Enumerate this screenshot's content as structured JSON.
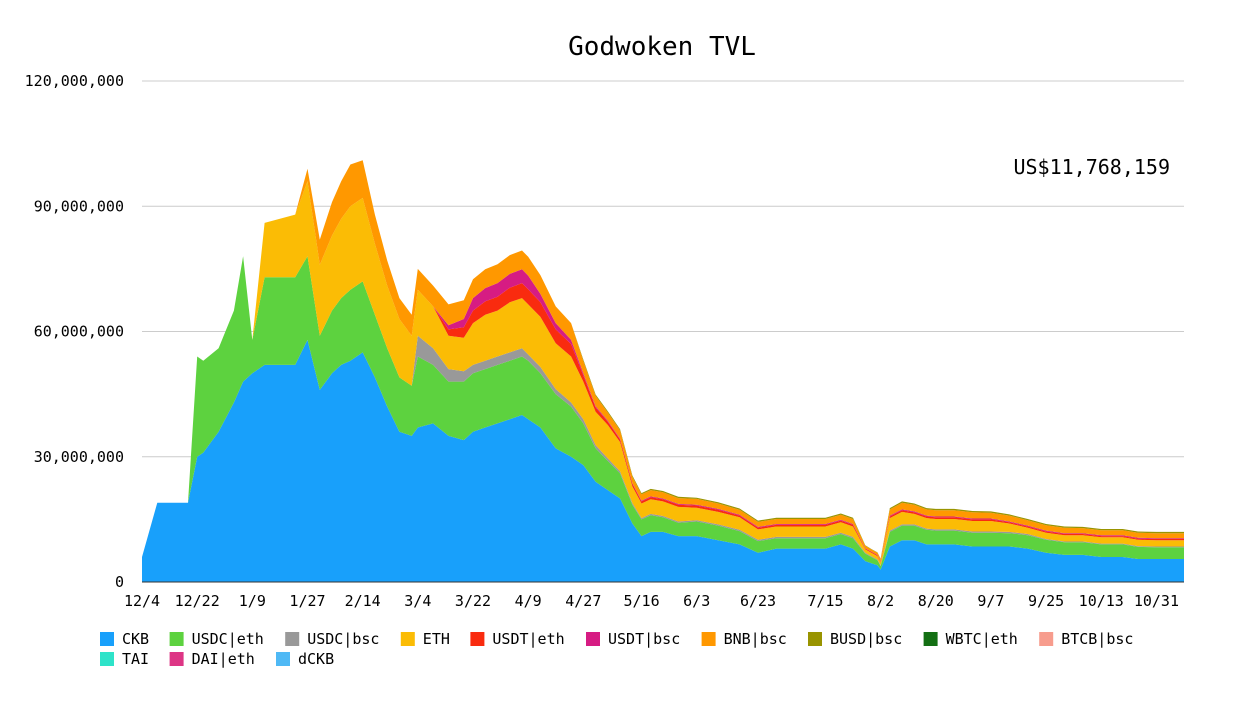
{
  "chart_data": {
    "type": "area",
    "stacked": true,
    "title": "Godwoken TVL",
    "annotation": "US$11,768,159",
    "xlabel": "",
    "ylabel": "",
    "ylim": [
      0,
      120000000
    ],
    "yticks": [
      0,
      30000000,
      60000000,
      90000000,
      120000000
    ],
    "ytick_labels": [
      "0",
      "30,000,000",
      "60,000,000",
      "90,000,000",
      "120,000,000"
    ],
    "x_ticks": [
      "12/4",
      "12/22",
      "1/9",
      "1/27",
      "2/14",
      "3/4",
      "3/22",
      "4/9",
      "4/27",
      "5/16",
      "6/3",
      "6/23",
      "7/15",
      "8/2",
      "8/20",
      "9/7",
      "9/25",
      "10/13",
      "10/31"
    ],
    "x_tick_index": [
      0,
      18,
      36,
      54,
      72,
      90,
      108,
      126,
      144,
      163,
      181,
      201,
      223,
      241,
      259,
      277,
      295,
      313,
      331
    ],
    "x": [
      0,
      5,
      10,
      15,
      18,
      20,
      25,
      30,
      33,
      36,
      40,
      45,
      50,
      54,
      58,
      62,
      65,
      68,
      72,
      76,
      80,
      84,
      88,
      90,
      95,
      100,
      105,
      108,
      112,
      116,
      120,
      124,
      126,
      130,
      135,
      140,
      144,
      148,
      152,
      156,
      160,
      163,
      166,
      170,
      175,
      181,
      188,
      195,
      201,
      207,
      213,
      218,
      223,
      228,
      232,
      236,
      238,
      240,
      241,
      244,
      248,
      252,
      256,
      259,
      265,
      271,
      277,
      283,
      289,
      295,
      301,
      307,
      313,
      320,
      325,
      331,
      337,
      340
    ],
    "grid": true,
    "legend_position": "bottom",
    "legend": [
      "CKB",
      "USDC|eth",
      "USDC|bsc",
      "ETH",
      "USDT|eth",
      "USDT|bsc",
      "BNB|bsc",
      "BUSD|bsc",
      "WBTC|eth",
      "BTCB|bsc",
      "TAI",
      "DAI|eth",
      "dCKB"
    ],
    "series": [
      {
        "name": "CKB",
        "color": "#18a0fb",
        "values": [
          6,
          19,
          19,
          19,
          30,
          31,
          36,
          43,
          48,
          50,
          52,
          52,
          52,
          58,
          46,
          50,
          52,
          53,
          55,
          49,
          42,
          36,
          35,
          37,
          38,
          35,
          34,
          36,
          37,
          38,
          39,
          40,
          39,
          37,
          32,
          30,
          28,
          24,
          22,
          20,
          14,
          11,
          12,
          12,
          11,
          11,
          10,
          9,
          7,
          8,
          8,
          8,
          8,
          9,
          8,
          5,
          4.5,
          4,
          3,
          8.5,
          10,
          10,
          9,
          9,
          9,
          8.5,
          8.5,
          8.5,
          8,
          7,
          6.5,
          6.5,
          6,
          6,
          5.5,
          5.5,
          5.5,
          5.5
        ]
      },
      {
        "name": "USDC|eth",
        "color": "#5dd23f",
        "values": [
          0,
          0,
          0,
          0,
          24,
          22,
          20,
          22,
          30,
          8,
          21,
          21,
          21,
          20,
          13,
          15,
          16,
          17,
          17,
          15,
          14,
          13,
          12,
          17,
          14,
          13,
          14,
          14,
          14,
          14,
          14,
          14,
          14,
          13,
          13,
          12,
          10,
          8,
          7,
          6,
          4.5,
          4,
          4,
          3.5,
          3.2,
          3.5,
          3.5,
          3.2,
          2.8,
          2.5,
          2.5,
          2.5,
          2.5,
          2.5,
          2.5,
          1.8,
          1.5,
          1.2,
          0.8,
          3.5,
          3.5,
          3.5,
          3.5,
          3.3,
          3.3,
          3.3,
          3.3,
          3.2,
          3.2,
          3.1,
          3,
          3,
          3,
          3,
          2.9,
          2.8,
          2.8,
          2.8
        ]
      },
      {
        "name": "USDC|bsc",
        "color": "#999999",
        "values": [
          0,
          0,
          0,
          0,
          0,
          0,
          0,
          0,
          0,
          0,
          0,
          0,
          0,
          0,
          0,
          0,
          0,
          0,
          0,
          0,
          0,
          0,
          0,
          5,
          4,
          3,
          2.5,
          2,
          2,
          2,
          2,
          2,
          1.5,
          1.5,
          1.2,
          1,
          1,
          0.8,
          0.6,
          0.5,
          0.4,
          0.3,
          0.3,
          0.3,
          0.3,
          0.3,
          0.3,
          0.3,
          0.3,
          0.3,
          0.3,
          0.3,
          0.3,
          0.3,
          0.3,
          0.2,
          0.2,
          0.2,
          0.2,
          0.3,
          0.3,
          0.3,
          0.3,
          0.3,
          0.3,
          0.3,
          0.3,
          0.3,
          0.3,
          0.2,
          0.2,
          0.2,
          0.2,
          0.2,
          0.2,
          0.2,
          0.2,
          0.2
        ]
      },
      {
        "name": "ETH",
        "color": "#fbbc05",
        "values": [
          0,
          0,
          0,
          0,
          0,
          0,
          0,
          0,
          0,
          0,
          13,
          14,
          15,
          18,
          17,
          18,
          19,
          20,
          20,
          17,
          15,
          14,
          12,
          11,
          10,
          8,
          8,
          10,
          11,
          11,
          12,
          12,
          12,
          12,
          11,
          11,
          9,
          8,
          8,
          7,
          4,
          3.5,
          3.5,
          3.5,
          3.5,
          3,
          3,
          3,
          2.5,
          2.5,
          2.5,
          2.5,
          2.5,
          2.5,
          2.5,
          0.8,
          0.8,
          0.8,
          0.8,
          3,
          3,
          2.5,
          2.5,
          2.5,
          2.5,
          2.5,
          2.5,
          2,
          1.5,
          1.5,
          1.5,
          1.5,
          1.5,
          1.5,
          1.5,
          1.5,
          1.5,
          1.5
        ]
      },
      {
        "name": "USDT|eth",
        "color": "#f92b0f",
        "values": [
          0,
          0,
          0,
          0,
          0,
          0,
          0,
          0,
          0,
          0,
          0,
          0,
          0,
          0,
          0,
          0,
          0,
          0,
          0,
          0,
          0,
          0,
          0,
          0,
          0,
          1.5,
          2.5,
          3,
          3.2,
          3.3,
          3.5,
          3.6,
          3.6,
          3.5,
          3.3,
          3,
          1.5,
          1,
          0.8,
          0.6,
          0.6,
          0.5,
          0.5,
          0.5,
          0.5,
          0.5,
          0.5,
          0.4,
          0.4,
          0.4,
          0.4,
          0.4,
          0.4,
          0.4,
          0.4,
          0.2,
          0.2,
          0.2,
          0.2,
          0.4,
          0.4,
          0.4,
          0.4,
          0.4,
          0.4,
          0.4,
          0.4,
          0.3,
          0.3,
          0.3,
          0.3,
          0.3,
          0.3,
          0.3,
          0.3,
          0.3,
          0.3,
          0.3
        ]
      },
      {
        "name": "USDT|bsc",
        "color": "#d61c83",
        "values": [
          0,
          0,
          0,
          0,
          0,
          0,
          0,
          0,
          0,
          0,
          0,
          0,
          0,
          0,
          0,
          0,
          0,
          0,
          0,
          0,
          0,
          0,
          0,
          0,
          0,
          1,
          2,
          3,
          3.2,
          3.3,
          3.3,
          3.3,
          3.3,
          2,
          1.5,
          1,
          0.5,
          0.3,
          0.2,
          0.2,
          0.2,
          0.2,
          0.2,
          0.2,
          0.2,
          0.2,
          0.2,
          0.2,
          0.2,
          0.2,
          0.2,
          0.2,
          0.2,
          0.2,
          0.2,
          0.1,
          0.1,
          0.1,
          0.1,
          0.2,
          0.2,
          0.2,
          0.2,
          0.2,
          0.2,
          0.2,
          0.2,
          0.2,
          0.2,
          0.2,
          0.2,
          0.2,
          0.2,
          0.2,
          0.2,
          0.2,
          0.2,
          0.2
        ]
      },
      {
        "name": "BNB|bsc",
        "color": "#ff9800",
        "values": [
          0,
          0,
          0,
          0,
          0,
          0,
          0,
          0,
          0,
          0,
          0,
          0,
          0,
          3,
          6,
          8,
          9,
          10,
          9,
          7,
          6,
          5,
          5,
          5,
          5,
          5,
          4.5,
          4.5,
          4.5,
          4.5,
          4.5,
          4.5,
          4.5,
          4.5,
          4,
          4,
          3,
          2.5,
          2,
          2,
          1.5,
          1.5,
          1.5,
          1.5,
          1.4,
          1.4,
          1.3,
          1.2,
          1.2,
          1.2,
          1.2,
          1.2,
          1.2,
          1.2,
          1.2,
          0.6,
          0.5,
          0.5,
          0.4,
          1.5,
          1.6,
          1.6,
          1.5,
          1.5,
          1.5,
          1.5,
          1.4,
          1.4,
          1.3,
          1.3,
          1.3,
          1.2,
          1.2,
          1.2,
          1.2,
          1.2,
          1.2,
          1.2
        ]
      },
      {
        "name": "BUSD|bsc",
        "color": "#999400",
        "values": [
          0,
          0,
          0,
          0,
          0,
          0,
          0,
          0,
          0,
          0,
          0,
          0,
          0,
          0,
          0,
          0,
          0,
          0,
          0,
          0,
          0,
          0,
          0,
          0,
          0,
          0,
          0,
          0,
          0,
          0,
          0,
          0,
          0,
          0,
          0,
          0,
          0.3,
          0.3,
          0.3,
          0.3,
          0.3,
          0.3,
          0.3,
          0.3,
          0.3,
          0.3,
          0.3,
          0.3,
          0.3,
          0.3,
          0.3,
          0.3,
          0.3,
          0.3,
          0.3,
          0.1,
          0.1,
          0.1,
          0.1,
          0.3,
          0.3,
          0.3,
          0.3,
          0.3,
          0.3,
          0.3,
          0.3,
          0.3,
          0.3,
          0.3,
          0.3,
          0.3,
          0.3,
          0.3,
          0.3,
          0.3,
          0.3,
          0.3
        ]
      },
      {
        "name": "WBTC|eth",
        "color": "#136f13",
        "values": [
          0,
          0,
          0,
          0,
          0,
          0,
          0,
          0,
          0,
          0,
          0,
          0,
          0,
          0,
          0,
          0,
          0,
          0,
          0,
          0,
          0,
          0,
          0,
          0,
          0,
          0,
          0,
          0,
          0,
          0,
          0,
          0,
          0,
          0,
          0,
          0,
          0,
          0,
          0,
          0,
          0,
          0,
          0,
          0,
          0,
          0,
          0,
          0,
          0,
          0,
          0,
          0,
          0,
          0,
          0,
          0,
          0,
          0,
          0,
          0,
          0,
          0,
          0,
          0,
          0,
          0,
          0,
          0,
          0,
          0,
          0,
          0,
          0,
          0,
          0,
          0,
          0,
          0
        ]
      },
      {
        "name": "BTCB|bsc",
        "color": "#f79c8d",
        "values": [
          0,
          0,
          0,
          0,
          0,
          0,
          0,
          0,
          0,
          0,
          0,
          0,
          0,
          0,
          0,
          0,
          0,
          0,
          0,
          0,
          0,
          0,
          0,
          0,
          0,
          0,
          0,
          0,
          0,
          0,
          0,
          0,
          0,
          0,
          0,
          0,
          0,
          0,
          0,
          0,
          0,
          0,
          0,
          0,
          0,
          0,
          0,
          0,
          0,
          0,
          0,
          0,
          0,
          0,
          0,
          0,
          0,
          0,
          0,
          0,
          0,
          0,
          0,
          0,
          0,
          0,
          0,
          0,
          0,
          0,
          0,
          0,
          0,
          0,
          0,
          0,
          0,
          0
        ]
      },
      {
        "name": "TAI",
        "color": "#2ee3c9",
        "values": [
          0,
          0,
          0,
          0,
          0,
          0,
          0,
          0,
          0,
          0,
          0,
          0,
          0,
          0,
          0,
          0,
          0,
          0,
          0,
          0,
          0,
          0,
          0,
          0,
          0,
          0,
          0,
          0,
          0,
          0,
          0,
          0,
          0,
          0,
          0,
          0,
          0,
          0,
          0,
          0,
          0,
          0,
          0,
          0,
          0,
          0,
          0,
          0,
          0,
          0,
          0,
          0,
          0,
          0,
          0,
          0,
          0,
          0,
          0,
          0,
          0,
          0,
          0,
          0,
          0,
          0,
          0,
          0,
          0,
          0,
          0,
          0,
          0,
          0,
          0,
          0,
          0,
          0
        ]
      },
      {
        "name": "DAI|eth",
        "color": "#dd3585",
        "values": [
          0,
          0,
          0,
          0,
          0,
          0,
          0,
          0,
          0,
          0,
          0,
          0,
          0,
          0,
          0,
          0,
          0,
          0,
          0,
          0,
          0,
          0,
          0,
          0,
          0,
          0,
          0,
          0,
          0,
          0,
          0,
          0,
          0,
          0,
          0,
          0,
          0,
          0,
          0,
          0,
          0,
          0,
          0,
          0,
          0,
          0,
          0,
          0,
          0,
          0,
          0,
          0,
          0,
          0,
          0,
          0,
          0,
          0,
          0,
          0,
          0,
          0,
          0,
          0,
          0,
          0,
          0,
          0,
          0,
          0,
          0,
          0,
          0,
          0,
          0,
          0,
          0,
          0
        ]
      },
      {
        "name": "dCKB",
        "color": "#4fb9f5",
        "values": [
          0,
          0,
          0,
          0,
          0,
          0,
          0,
          0,
          0,
          0,
          0,
          0,
          0,
          0,
          0,
          0,
          0,
          0,
          0,
          0,
          0,
          0,
          0,
          0,
          0,
          0,
          0,
          0,
          0,
          0,
          0,
          0,
          0,
          0,
          0,
          0,
          0,
          0,
          0,
          0,
          0,
          0,
          0,
          0,
          0,
          0,
          0,
          0,
          0,
          0,
          0,
          0,
          0,
          0,
          0,
          0,
          0,
          0,
          0,
          0,
          0,
          0,
          0,
          0,
          0,
          0,
          0,
          0,
          0,
          0,
          0,
          0,
          0,
          0,
          0,
          0,
          0,
          0
        ]
      }
    ],
    "value_unit_multiplier": 1000000
  }
}
